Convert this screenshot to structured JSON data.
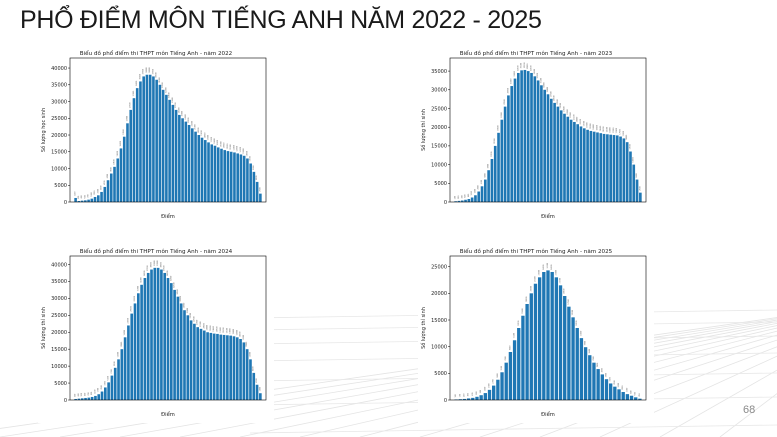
{
  "slide": {
    "title": "PHỔ ĐIỂM MÔN TIẾNG ANH NĂM 2022 - 2025",
    "page_number": "68"
  },
  "chart_data": [
    {
      "type": "bar",
      "title": "Biểu đồ phổ điểm thi THPT môn Tiếng Anh - năm 2022",
      "xlabel": "Điểm",
      "ylabel": "Số lượng học sinh",
      "ylim": [
        0,
        43000
      ],
      "yticks": [
        0,
        5000,
        10000,
        15000,
        20000,
        25000,
        30000,
        35000,
        40000
      ],
      "bar_color": "#1f77b4",
      "grid": false,
      "values": [
        1200,
        300,
        400,
        500,
        700,
        1000,
        1500,
        2000,
        3000,
        4500,
        6500,
        8500,
        10500,
        13000,
        16000,
        19500,
        23500,
        27500,
        31000,
        34000,
        36000,
        37500,
        38000,
        38000,
        37500,
        36500,
        35000,
        33500,
        32000,
        30500,
        29000,
        27500,
        26000,
        25000,
        24000,
        23000,
        22000,
        21000,
        20000,
        19200,
        18500,
        17800,
        17200,
        16800,
        16300,
        15900,
        15500,
        15200,
        15000,
        14800,
        14500,
        14200,
        13800,
        13000,
        11500,
        9000,
        6000,
        2500
      ]
    },
    {
      "type": "bar",
      "title": "Biểu đồ phổ điểm thi THPT môn Tiếng Anh - năm 2023",
      "xlabel": "Điểm",
      "ylabel": "Số lượng thí sinh",
      "ylim": [
        0,
        38500
      ],
      "yticks": [
        0,
        5000,
        10000,
        15000,
        20000,
        25000,
        30000,
        35000
      ],
      "bar_color": "#1f77b4",
      "grid": false,
      "values": [
        200,
        300,
        400,
        600,
        800,
        1200,
        1800,
        2800,
        4200,
        6000,
        8500,
        11500,
        15000,
        18500,
        22000,
        25500,
        28500,
        31000,
        33000,
        34500,
        35200,
        35300,
        35000,
        34500,
        33600,
        32500,
        31200,
        30000,
        28800,
        27600,
        26500,
        25500,
        24500,
        23600,
        22800,
        22000,
        21400,
        20800,
        20200,
        19700,
        19300,
        19000,
        18800,
        18600,
        18400,
        18200,
        18100,
        18000,
        17900,
        17800,
        17500,
        17000,
        16000,
        13500,
        10000,
        6000,
        2500
      ]
    },
    {
      "type": "bar",
      "title": "Biểu đồ phổ điểm thi THPT môn Tiếng Anh - năm 2024",
      "xlabel": "Điểm",
      "ylabel": "Số lượng thí sinh",
      "ylim": [
        0,
        42500
      ],
      "yticks": [
        0,
        5000,
        10000,
        15000,
        20000,
        25000,
        30000,
        35000,
        40000
      ],
      "bar_color": "#1f77b4",
      "grid": false,
      "values": [
        300,
        400,
        500,
        600,
        700,
        900,
        1200,
        1700,
        2500,
        3700,
        5200,
        7200,
        9500,
        12000,
        15000,
        18500,
        22000,
        25500,
        28500,
        31500,
        34000,
        36000,
        37500,
        38500,
        39000,
        39000,
        38500,
        37500,
        36000,
        34500,
        32500,
        30500,
        28500,
        26500,
        25000,
        23500,
        22500,
        21500,
        21000,
        20500,
        20000,
        19800,
        19600,
        19500,
        19300,
        19200,
        19100,
        19000,
        18800,
        18500,
        18000,
        17000,
        15000,
        12000,
        8000,
        4500,
        2000
      ]
    },
    {
      "type": "bar",
      "title": "Biểu đồ phổ điểm thi THPT môn Tiếng Anh - năm 2025",
      "xlabel": "Điểm",
      "ylabel": "Số lượng thí sinh",
      "ylim": [
        0,
        27000
      ],
      "yticks": [
        0,
        5000,
        10000,
        15000,
        20000,
        25000
      ],
      "bar_color": "#1f77b4",
      "grid": false,
      "values": [
        100,
        150,
        200,
        300,
        400,
        600,
        900,
        1300,
        1900,
        2700,
        3800,
        5200,
        7000,
        9000,
        11200,
        13500,
        15800,
        18000,
        20000,
        21800,
        23000,
        24000,
        24300,
        24000,
        23000,
        21500,
        19500,
        17500,
        15500,
        13500,
        11600,
        9900,
        8400,
        7000,
        5800,
        4800,
        3900,
        3100,
        2500,
        2000,
        1500,
        1100,
        800,
        500,
        250
      ]
    }
  ]
}
